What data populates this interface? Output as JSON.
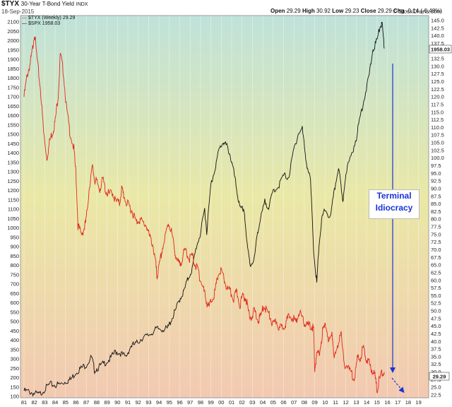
{
  "header": {
    "symbol": "$TYX",
    "description": "30-Year T-Bond Yield",
    "exchange": "INDX",
    "date": "18-Sep-2015",
    "open_label": "Open",
    "open_value": "29.29",
    "high_label": "High",
    "high_value": "30.92",
    "low_label": "Low",
    "low_value": "29.23",
    "close_label": "Close",
    "close_value": "29.29",
    "chg_label": "Chg",
    "chg_value": "-0.14 (-0.48%)",
    "watermark": "© StockCharts.com"
  },
  "legend": {
    "item1": "$TYX (Weekly) 29.29",
    "item2": "$SPX 1958.03"
  },
  "annotation": {
    "line1": "Terminal",
    "line2": "Idiocracy"
  },
  "colors": {
    "tyx": "#e0281a",
    "spx": "#111111",
    "arrow": "#1a33d8",
    "bg_top": "#bfe2da",
    "bg_mid": "#eae8a6",
    "bg_bottom": "#f2c9b1"
  },
  "chart_data": {
    "type": "line",
    "left_axis_ticks": [
      100,
      150,
      200,
      250,
      300,
      350,
      400,
      450,
      500,
      550,
      600,
      650,
      700,
      750,
      800,
      850,
      900,
      950,
      1000,
      1050,
      1100,
      1150,
      1200,
      1250,
      1300,
      1350,
      1400,
      1450,
      1500,
      1550,
      1600,
      1650,
      1700,
      1750,
      1800,
      1850,
      1900,
      1950,
      2000,
      2050,
      2100
    ],
    "right_axis_ticks": [
      "22.5",
      "25.0",
      "27.5",
      "30.0",
      "32.5",
      "35.0",
      "37.5",
      "40.0",
      "42.5",
      "45.0",
      "47.5",
      "50.0",
      "52.5",
      "55.0",
      "57.5",
      "60.0",
      "62.5",
      "65.0",
      "67.5",
      "70.0",
      "72.5",
      "75.0",
      "77.5",
      "80.0",
      "82.5",
      "85.0",
      "87.5",
      "90.0",
      "92.5",
      "95.0",
      "97.5",
      "100.0",
      "102.5",
      "105.0",
      "107.5",
      "110.0",
      "112.5",
      "115.0",
      "117.5",
      "120.0",
      "122.5",
      "125.0",
      "127.5",
      "130.0",
      "132.5",
      "135.0",
      "137.5",
      "140.0",
      "142.5",
      "145.0"
    ],
    "x_ticks": [
      "81",
      "82",
      "83",
      "84",
      "85",
      "86",
      "87",
      "88",
      "89",
      "90",
      "91",
      "92",
      "93",
      "94",
      "95",
      "96",
      "97",
      "98",
      "99",
      "00",
      "01",
      "02",
      "03",
      "04",
      "05",
      "06",
      "07",
      "08",
      "09",
      "10",
      "11",
      "12",
      "13",
      "14",
      "15",
      "16",
      "17",
      "18",
      "19"
    ],
    "last_value_labels": {
      "spx": "1958.03",
      "tyx": "29.29"
    },
    "y_left_range": [
      100,
      2100
    ],
    "y_right_range": [
      22.5,
      145.0
    ],
    "series": [
      {
        "name": "$TYX (Weekly) 29.29",
        "axis": "right",
        "x": [
          1981.0,
          1981.3,
          1981.6,
          1981.8,
          1982.0,
          1982.3,
          1982.6,
          1982.9,
          1983.2,
          1983.5,
          1983.8,
          1984.0,
          1984.3,
          1984.5,
          1984.8,
          1985.1,
          1985.4,
          1985.8,
          1986.0,
          1986.2,
          1986.5,
          1986.8,
          1987.0,
          1987.3,
          1987.6,
          1987.8,
          1988.0,
          1988.3,
          1988.6,
          1988.9,
          1989.2,
          1989.5,
          1989.8,
          1990.2,
          1990.4,
          1990.6,
          1990.9,
          1991.2,
          1991.5,
          1991.8,
          1992.1,
          1992.4,
          1992.8,
          1993.1,
          1993.4,
          1993.7,
          1993.8,
          1994.0,
          1994.3,
          1994.6,
          1994.9,
          1995.2,
          1995.5,
          1995.8,
          1996.0,
          1996.3,
          1996.6,
          1996.9,
          1997.2,
          1997.5,
          1997.8,
          1998.0,
          1998.3,
          1998.6,
          1998.8,
          1999.1,
          1999.4,
          1999.7,
          2000.0,
          2000.3,
          2000.6,
          2000.9,
          2001.2,
          2001.5,
          2001.8,
          2002.1,
          2002.4,
          2002.6,
          2002.9,
          2003.2,
          2003.5,
          2003.8,
          2004.1,
          2004.4,
          2004.7,
          2005.0,
          2005.3,
          2005.6,
          2005.9,
          2006.2,
          2006.5,
          2006.9,
          2007.2,
          2007.5,
          2007.8,
          2008.1,
          2008.4,
          2008.7,
          2008.9,
          2009.0,
          2009.2,
          2009.5,
          2009.8,
          2010.1,
          2010.4,
          2010.7,
          2010.9,
          2011.2,
          2011.5,
          2011.8,
          2012.1,
          2012.5,
          2012.8,
          2013.1,
          2013.4,
          2013.7,
          2013.9,
          2014.2,
          2014.5,
          2014.8,
          2015.0,
          2015.2,
          2015.5,
          2015.7
        ],
        "y": [
          120,
          127,
          131,
          135,
          141,
          131,
          122,
          108,
          100,
          106,
          109,
          112,
          121,
          134,
          128,
          116,
          109,
          103,
          95,
          78,
          75,
          77,
          80,
          91,
          97,
          93,
          92,
          90,
          93,
          89,
          88,
          89,
          86,
          85,
          90,
          88,
          85,
          84,
          82,
          79,
          80,
          79,
          78,
          74,
          72,
          65,
          61,
          64,
          70,
          74,
          79,
          76,
          70,
          66,
          65,
          68,
          70,
          67,
          68,
          65,
          63,
          60,
          57,
          53,
          51,
          54,
          56,
          62,
          63,
          60,
          57,
          56,
          54,
          56,
          52,
          55,
          54,
          50,
          48,
          50,
          47,
          48,
          52,
          50,
          48,
          45,
          47,
          44,
          45,
          46,
          48,
          48,
          46,
          50,
          47,
          46,
          45,
          45,
          44,
          31,
          35,
          37,
          44,
          45,
          40,
          42,
          34,
          38,
          44,
          33,
          32,
          30,
          28,
          34,
          35,
          38,
          35,
          33,
          31,
          29,
          24,
          27,
          30,
          30
        ]
      },
      {
        "name": "$SPX 1958.03",
        "axis": "left",
        "x": [
          1981.0,
          1981.5,
          1982.0,
          1982.5,
          1983.0,
          1983.5,
          1984.0,
          1984.5,
          1985.0,
          1985.5,
          1986.0,
          1986.5,
          1987.0,
          1987.5,
          1987.8,
          1988.3,
          1988.8,
          1989.3,
          1989.8,
          1990.3,
          1990.8,
          1991.3,
          1991.8,
          1992.3,
          1992.8,
          1993.3,
          1993.8,
          1994.3,
          1994.8,
          1995.2,
          1995.6,
          1996.0,
          1996.4,
          1996.8,
          1997.2,
          1997.6,
          1998.0,
          1998.4,
          1998.6,
          1999.0,
          1999.4,
          1999.8,
          2000.2,
          2000.5,
          2000.8,
          2001.2,
          2001.5,
          2001.8,
          2002.2,
          2002.5,
          2002.8,
          2003.2,
          2003.5,
          2003.8,
          2004.2,
          2004.6,
          2005.0,
          2005.5,
          2006.0,
          2006.5,
          2007.0,
          2007.4,
          2007.8,
          2008.2,
          2008.6,
          2008.9,
          2009.2,
          2009.4,
          2009.7,
          2010.0,
          2010.5,
          2010.9,
          2011.3,
          2011.7,
          2012.0,
          2012.5,
          2013.0,
          2013.4,
          2013.8,
          2014.2,
          2014.6,
          2015.0,
          2015.3,
          2015.5,
          2015.7
        ],
        "y": [
          130,
          125,
          115,
          110,
          140,
          165,
          160,
          165,
          180,
          190,
          230,
          250,
          270,
          310,
          240,
          260,
          280,
          300,
          340,
          330,
          310,
          370,
          380,
          410,
          420,
          440,
          460,
          460,
          460,
          510,
          560,
          620,
          660,
          730,
          780,
          900,
          970,
          1100,
          980,
          1230,
          1320,
          1420,
          1460,
          1440,
          1400,
          1300,
          1200,
          1100,
          1100,
          900,
          800,
          840,
          980,
          1050,
          1140,
          1110,
          1200,
          1220,
          1280,
          1270,
          1420,
          1500,
          1530,
          1350,
          1250,
          880,
          700,
          900,
          1050,
          1100,
          1050,
          1200,
          1330,
          1130,
          1300,
          1380,
          1480,
          1600,
          1700,
          1800,
          1950,
          2000,
          2080,
          2090,
          1958
        ]
      }
    ]
  }
}
